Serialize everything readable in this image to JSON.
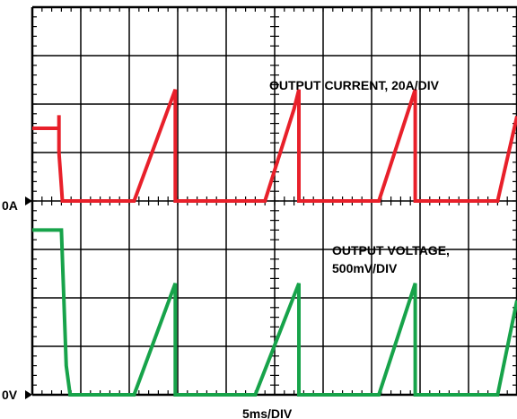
{
  "chart_data": {
    "type": "line",
    "x_div_label": "5ms/DIV",
    "divisions": {
      "x": 10,
      "y": 8
    },
    "grid": true,
    "channels": [
      {
        "name": "OUTPUT CURRENT, 20A/DIV",
        "ground_label": "0A",
        "ground_div": 4,
        "color": "#e8202a",
        "points": [
          [
            0.0,
            5.5
          ],
          [
            0.55,
            5.5
          ],
          [
            0.55,
            5.77
          ],
          [
            0.55,
            5.0
          ],
          [
            0.6,
            4.3
          ],
          [
            0.62,
            4.0
          ],
          [
            2.1,
            4.0
          ],
          [
            2.95,
            6.3
          ],
          [
            2.95,
            4.0
          ],
          [
            4.8,
            4.0
          ],
          [
            5.4,
            5.9
          ],
          [
            5.5,
            6.3
          ],
          [
            5.5,
            4.0
          ],
          [
            7.15,
            4.0
          ],
          [
            7.9,
            6.3
          ],
          [
            7.9,
            4.0
          ],
          [
            9.6,
            4.0
          ],
          [
            10.0,
            5.75
          ]
        ],
        "spike_label_length": 0.4
      },
      {
        "name_line1": "OUTPUT VOLTAGE,",
        "name_line2": "500mV/DIV",
        "ground_label": "0V",
        "ground_div": 0,
        "color": "#17a34a",
        "points": [
          [
            0.0,
            3.4
          ],
          [
            0.6,
            3.4
          ],
          [
            0.7,
            0.6
          ],
          [
            0.78,
            0.0
          ],
          [
            2.1,
            0.0
          ],
          [
            2.95,
            2.3
          ],
          [
            2.95,
            0.0
          ],
          [
            4.6,
            0.0
          ],
          [
            5.5,
            2.3
          ],
          [
            5.5,
            0.0
          ],
          [
            7.15,
            0.0
          ],
          [
            7.9,
            2.3
          ],
          [
            7.9,
            0.0
          ],
          [
            9.6,
            0.0
          ],
          [
            10.0,
            1.95
          ]
        ]
      }
    ]
  }
}
